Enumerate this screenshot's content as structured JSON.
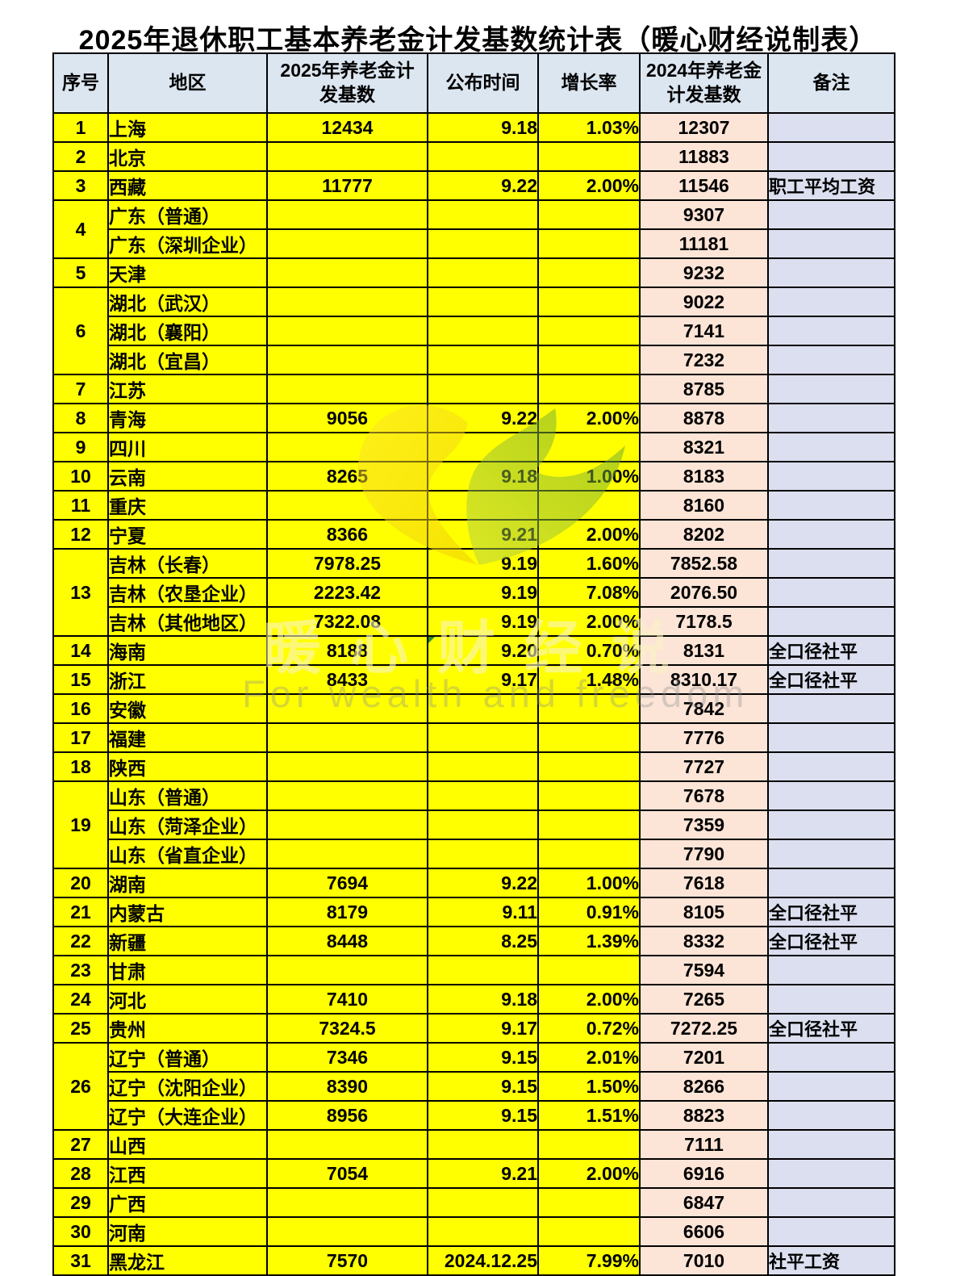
{
  "title": "2025年退休职工基本养老金计发基数统计表（暖心财经说制表）",
  "columns": [
    {
      "label": "序号"
    },
    {
      "label": "地区"
    },
    {
      "label": "2025年养老金计\n发基数"
    },
    {
      "label": "公布时间"
    },
    {
      "label": "增长率"
    },
    {
      "label": "2024年养老金\n计发基数"
    },
    {
      "label": "备注"
    }
  ],
  "rows": [
    {
      "no": "1",
      "span": 1,
      "region": "上海",
      "b25": "12434",
      "date": "9.18",
      "growth": "1.03%",
      "b24": "12307",
      "remark": ""
    },
    {
      "no": "2",
      "span": 1,
      "region": "北京",
      "b25": "",
      "date": "",
      "growth": "",
      "b24": "11883",
      "remark": ""
    },
    {
      "no": "3",
      "span": 1,
      "region": "西藏",
      "b25": "11777",
      "date": "9.22",
      "growth": "2.00%",
      "b24": "11546",
      "remark": "职工平均工资"
    },
    {
      "no": "4",
      "span": 2,
      "region": "广东（普通）",
      "b25": "",
      "date": "",
      "growth": "",
      "b24": "9307",
      "remark": ""
    },
    {
      "region": "广东（深圳企业）",
      "b25": "",
      "date": "",
      "growth": "",
      "b24": "11181",
      "remark": ""
    },
    {
      "no": "5",
      "span": 1,
      "region": "天津",
      "b25": "",
      "date": "",
      "growth": "",
      "b24": "9232",
      "remark": ""
    },
    {
      "no": "6",
      "span": 3,
      "region": "湖北（武汉）",
      "b25": "",
      "date": "",
      "growth": "",
      "b24": "9022",
      "remark": ""
    },
    {
      "region": "湖北（襄阳）",
      "b25": "",
      "date": "",
      "growth": "",
      "b24": "7141",
      "remark": ""
    },
    {
      "region": "湖北（宜昌）",
      "b25": "",
      "date": "",
      "growth": "",
      "b24": "7232",
      "remark": ""
    },
    {
      "no": "7",
      "span": 1,
      "region": "江苏",
      "b25": "",
      "date": "",
      "growth": "",
      "b24": "8785",
      "remark": ""
    },
    {
      "no": "8",
      "span": 1,
      "region": "青海",
      "b25": "9056",
      "date": "9.22",
      "growth": "2.00%",
      "b24": "8878",
      "remark": ""
    },
    {
      "no": "9",
      "span": 1,
      "region": "四川",
      "b25": "",
      "date": "",
      "growth": "",
      "b24": "8321",
      "remark": ""
    },
    {
      "no": "10",
      "span": 1,
      "region": "云南",
      "b25": "8265",
      "date": "9.18",
      "growth": "1.00%",
      "b24": "8183",
      "remark": ""
    },
    {
      "no": "11",
      "span": 1,
      "region": "重庆",
      "b25": "",
      "date": "",
      "growth": "",
      "b24": "8160",
      "remark": ""
    },
    {
      "no": "12",
      "span": 1,
      "region": "宁夏",
      "b25": "8366",
      "date": "9.21",
      "growth": "2.00%",
      "b24": "8202",
      "remark": ""
    },
    {
      "no": "13",
      "span": 3,
      "region": "吉林（长春）",
      "b25": "7978.25",
      "date": "9.19",
      "growth": "1.60%",
      "b24": "7852.58",
      "remark": ""
    },
    {
      "region": "吉林（农垦企业）",
      "b25": "2223.42",
      "date": "9.19",
      "growth": "7.08%",
      "b24": "2076.50",
      "remark": ""
    },
    {
      "region": "吉林（其他地区）",
      "b25": "7322.08",
      "date": "9.19",
      "growth": "2.00%",
      "b24": "7178.5",
      "remark": ""
    },
    {
      "no": "14",
      "span": 1,
      "region": "海南",
      "b25": "8188",
      "date": "9.20",
      "growth": "0.70%",
      "b24": "8131",
      "remark": "全口径社平",
      "marker": true
    },
    {
      "no": "15",
      "span": 1,
      "region": "浙江",
      "b25": "8433",
      "date": "9.17",
      "growth": "1.48%",
      "b24": "8310.17",
      "remark": "全口径社平"
    },
    {
      "no": "16",
      "span": 1,
      "region": "安徽",
      "b25": "",
      "date": "",
      "growth": "",
      "b24": "7842",
      "remark": ""
    },
    {
      "no": "17",
      "span": 1,
      "region": "福建",
      "b25": "",
      "date": "",
      "growth": "",
      "b24": "7776",
      "remark": ""
    },
    {
      "no": "18",
      "span": 1,
      "region": "陕西",
      "b25": "",
      "date": "",
      "growth": "",
      "b24": "7727",
      "remark": ""
    },
    {
      "no": "19",
      "span": 3,
      "region": "山东（普通）",
      "b25": "",
      "date": "",
      "growth": "",
      "b24": "7678",
      "remark": ""
    },
    {
      "region": "山东（菏泽企业）",
      "b25": "",
      "date": "",
      "growth": "",
      "b24": "7359",
      "remark": ""
    },
    {
      "region": "山东（省直企业）",
      "b25": "",
      "date": "",
      "growth": "",
      "b24": "7790",
      "remark": ""
    },
    {
      "no": "20",
      "span": 1,
      "region": "湖南",
      "b25": "7694",
      "date": "9.22",
      "growth": "1.00%",
      "b24": "7618",
      "remark": ""
    },
    {
      "no": "21",
      "span": 1,
      "region": "内蒙古",
      "b25": "8179",
      "date": "9.11",
      "growth": "0.91%",
      "b24": "8105",
      "remark": "全口径社平"
    },
    {
      "no": "22",
      "span": 1,
      "region": "新疆",
      "b25": "8448",
      "date": "8.25",
      "growth": "1.39%",
      "b24": "8332",
      "remark": "全口径社平"
    },
    {
      "no": "23",
      "span": 1,
      "region": "甘肃",
      "b25": "",
      "date": "",
      "growth": "",
      "b24": "7594",
      "remark": ""
    },
    {
      "no": "24",
      "span": 1,
      "region": "河北",
      "b25": "7410",
      "date": "9.18",
      "growth": "2.00%",
      "b24": "7265",
      "remark": ""
    },
    {
      "no": "25",
      "span": 1,
      "region": "贵州",
      "b25": "7324.5",
      "date": "9.17",
      "growth": "0.72%",
      "b24": "7272.25",
      "remark": "全口径社平"
    },
    {
      "no": "26",
      "span": 3,
      "region": "辽宁（普通）",
      "b25": "7346",
      "date": "9.15",
      "growth": "2.01%",
      "b24": "7201",
      "remark": ""
    },
    {
      "region": "辽宁（沈阳企业）",
      "b25": "8390",
      "date": "9.15",
      "growth": "1.50%",
      "b24": "8266",
      "remark": ""
    },
    {
      "region": "辽宁（大连企业）",
      "b25": "8956",
      "date": "9.15",
      "growth": "1.51%",
      "b24": "8823",
      "remark": ""
    },
    {
      "no": "27",
      "span": 1,
      "region": "山西",
      "b25": "",
      "date": "",
      "growth": "",
      "b24": "7111",
      "remark": ""
    },
    {
      "no": "28",
      "span": 1,
      "region": "江西",
      "b25": "7054",
      "date": "9.21",
      "growth": "2.00%",
      "b24": "6916",
      "remark": ""
    },
    {
      "no": "29",
      "span": 1,
      "region": "广西",
      "b25": "",
      "date": "",
      "growth": "",
      "b24": "6847",
      "remark": ""
    },
    {
      "no": "30",
      "span": 1,
      "region": "河南",
      "b25": "",
      "date": "",
      "growth": "",
      "b24": "6606",
      "remark": ""
    },
    {
      "no": "31",
      "span": 1,
      "region": "黑龙江",
      "b25": "7570",
      "date": "2024.12.25",
      "growth": "7.99%",
      "b24": "7010",
      "remark": "社平工资"
    }
  ],
  "watermark": {
    "text_cn": "暖心财经说",
    "text_en": "For wealth and freedom",
    "logo": "heart-leaf-logo"
  },
  "colors": {
    "cell_yellow": "#ffff00",
    "cell_pink": "#fce4d6",
    "cell_blue": "#dbdfef",
    "header_blue": "#dce6f1",
    "border": "#000000",
    "logo_gold": "#f0cd00",
    "logo_green": "#7fb335",
    "marker_green": "#2e8b2e"
  }
}
